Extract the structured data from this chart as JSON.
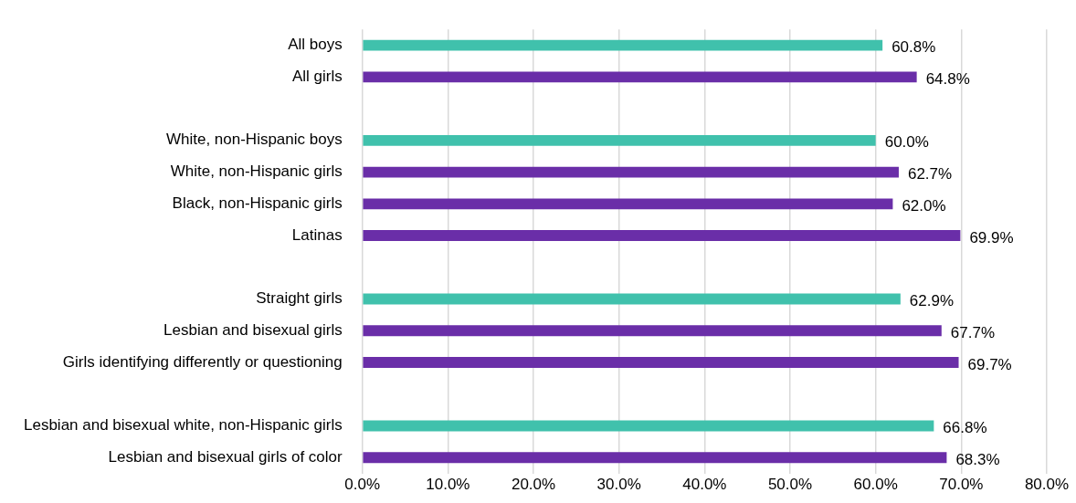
{
  "chart_data": {
    "type": "bar",
    "orientation": "horizontal",
    "categories": [
      "All boys",
      "All girls",
      null,
      "White, non-Hispanic boys",
      "White, non-Hispanic girls",
      "Black, non-Hispanic girls",
      "Latinas",
      null,
      "Straight girls",
      "Lesbian and bisexual girls",
      "Girls identifying differently or questioning",
      null,
      "Lesbian and bisexual white, non-Hispanic girls",
      "Lesbian and bisexual girls of color"
    ],
    "values": [
      60.8,
      64.8,
      null,
      60.0,
      62.7,
      62.0,
      69.9,
      null,
      62.9,
      67.7,
      69.7,
      null,
      66.8,
      68.3
    ],
    "colors": [
      "#40c1ac",
      "#6a2ea8",
      null,
      "#40c1ac",
      "#6a2ea8",
      "#6a2ea8",
      "#6a2ea8",
      null,
      "#40c1ac",
      "#6a2ea8",
      "#6a2ea8",
      null,
      "#40c1ac",
      "#6a2ea8"
    ],
    "value_labels": [
      "60.8%",
      "64.8%",
      null,
      "60.0%",
      "62.7%",
      "62.0%",
      "69.9%",
      null,
      "62.9%",
      "67.7%",
      "69.7%",
      null,
      "66.8%",
      "68.3%"
    ],
    "xlim": [
      0,
      80
    ],
    "xticks": [
      {
        "value": 0,
        "label": "0.0%"
      },
      {
        "value": 10,
        "label": "10.0%"
      },
      {
        "value": 20,
        "label": "20.0%"
      },
      {
        "value": 30,
        "label": "30.0%"
      },
      {
        "value": 40,
        "label": "40.0%"
      },
      {
        "value": 50,
        "label": "50.0%"
      },
      {
        "value": 60,
        "label": "60.0%"
      },
      {
        "value": 70,
        "label": "70.0%"
      },
      {
        "value": 80,
        "label": "80.0%"
      }
    ],
    "grid": "x",
    "legend": false
  }
}
